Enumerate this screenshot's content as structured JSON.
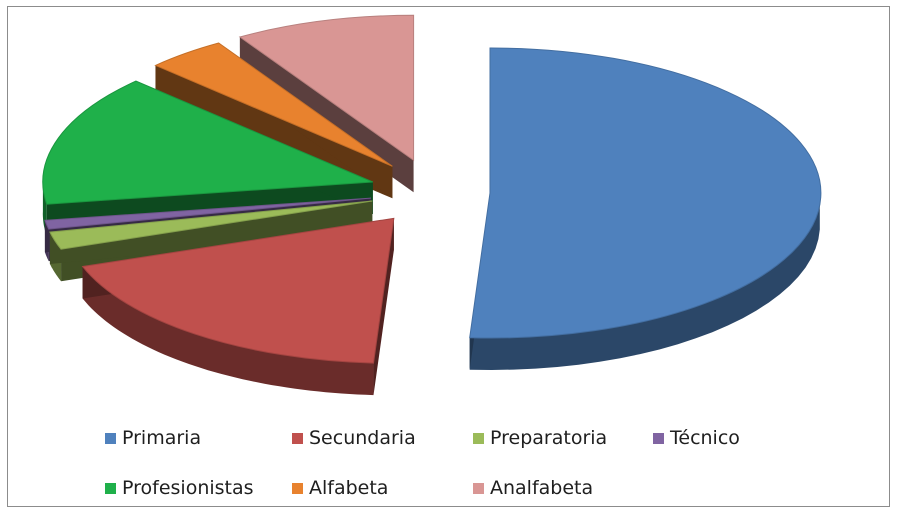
{
  "chart_data": {
    "type": "pie",
    "title": "",
    "exploded": true,
    "three_d": true,
    "legend_position": "bottom",
    "series": [
      {
        "name": "",
        "values": [
          52,
          19,
          2,
          1,
          15,
          4,
          9
        ]
      }
    ],
    "categories": [
      "Primaria",
      "Secundaria",
      "Preparatoria",
      "Técnico",
      "Profesionistas",
      "Alfabeta",
      "Analfabeta"
    ],
    "colors": [
      "#4f81bd",
      "#c0504d",
      "#9bbb59",
      "#8064a2",
      "#1fb04a",
      "#e8822e",
      "#d99694"
    ]
  }
}
